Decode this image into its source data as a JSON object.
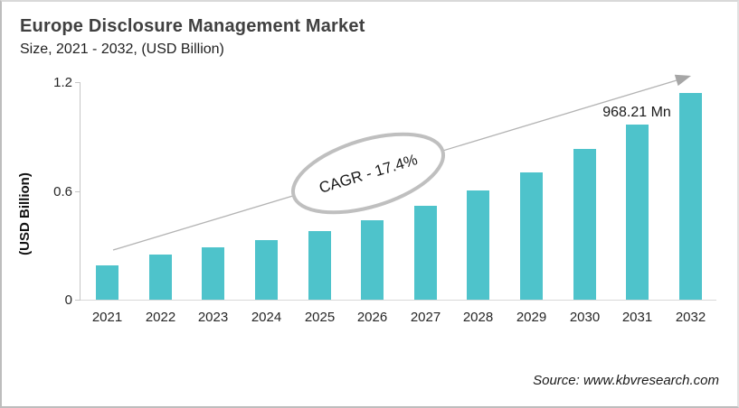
{
  "header": {
    "title": "Europe Disclosure Management Market",
    "subtitle": "Size, 2021 - 2032, (USD Billion)"
  },
  "chart_data": {
    "type": "bar",
    "title": "Europe Disclosure Management Market",
    "subtitle": "Size, 2021 - 2032, (USD Billion)",
    "ylabel": "(USD Billion)",
    "xlabel": "",
    "categories": [
      "2021",
      "2022",
      "2023",
      "2024",
      "2025",
      "2026",
      "2027",
      "2028",
      "2029",
      "2030",
      "2031",
      "2032"
    ],
    "values": [
      0.19,
      0.25,
      0.29,
      0.33,
      0.38,
      0.44,
      0.52,
      0.6,
      0.7,
      0.83,
      0.968,
      1.14
    ],
    "ylim": [
      0,
      1.26
    ],
    "yticks": [
      0,
      0.6,
      1.2
    ],
    "ytick_labels": [
      "0",
      "0.6",
      "1.2"
    ],
    "grid": false,
    "legend": "none",
    "bar_color": "#4ec3cb",
    "annotations": {
      "cagr_label": "CAGR - 17.4%",
      "value_label": "968.21 Mn",
      "value_label_category": "2031",
      "trend_arrow": "up-right"
    }
  },
  "footer": {
    "source": "Source: www.kbvresearch.com"
  },
  "colors": {
    "bar": "#4ec3cb",
    "title": "#404040",
    "axis_line": "#c6c6c6",
    "trend_line": "#b3b3b3",
    "arrowhead": "#a6a6a6",
    "ellipse_stroke": "#bfbfbf"
  }
}
